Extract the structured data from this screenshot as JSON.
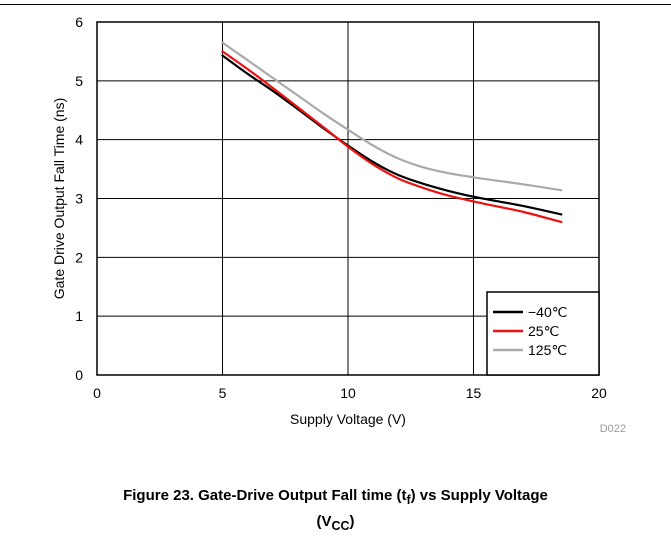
{
  "chart_data": {
    "type": "line",
    "xlabel": "Supply Voltage (V)",
    "ylabel": "Gate Drive Output Fall Time (ns)",
    "xlim": [
      0,
      20
    ],
    "ylim": [
      0,
      6
    ],
    "xticks": [
      "0",
      "5",
      "10",
      "15",
      "20"
    ],
    "yticks": [
      "0",
      "1",
      "2",
      "3",
      "4",
      "5",
      "6"
    ],
    "grid": true,
    "legend_position": "bottom-right",
    "series": [
      {
        "name": "−40℃",
        "color": "#000000",
        "x": [
          5,
          6,
          7,
          8,
          9,
          10,
          11,
          12,
          13,
          14,
          15,
          16,
          17,
          18.5
        ],
        "y": [
          5.43,
          5.12,
          4.83,
          4.52,
          4.2,
          3.9,
          3.62,
          3.4,
          3.25,
          3.13,
          3.03,
          2.95,
          2.87,
          2.73
        ]
      },
      {
        "name": "25℃",
        "color": "#ee1111",
        "x": [
          5,
          6,
          7,
          8,
          9,
          10,
          11,
          12,
          13,
          14,
          15,
          16,
          17,
          18.5
        ],
        "y": [
          5.5,
          5.2,
          4.88,
          4.55,
          4.22,
          3.88,
          3.58,
          3.34,
          3.18,
          3.05,
          2.95,
          2.86,
          2.77,
          2.6
        ]
      },
      {
        "name": "125℃",
        "color": "#aaaaaa",
        "x": [
          5,
          6,
          7,
          8,
          9,
          10,
          11,
          12,
          13,
          14,
          15,
          16,
          17,
          18.5
        ],
        "y": [
          5.65,
          5.35,
          5.05,
          4.75,
          4.45,
          4.17,
          3.9,
          3.68,
          3.53,
          3.43,
          3.36,
          3.3,
          3.24,
          3.14
        ]
      }
    ],
    "note": "D022"
  },
  "caption": {
    "line1_pre": "Figure 23. Gate-Drive Output Fall time (t",
    "line1_sub": "f",
    "line1_post": ") vs Supply Voltage",
    "line2_pre": "(V",
    "line2_sub": "CC",
    "line2_post": ")"
  }
}
